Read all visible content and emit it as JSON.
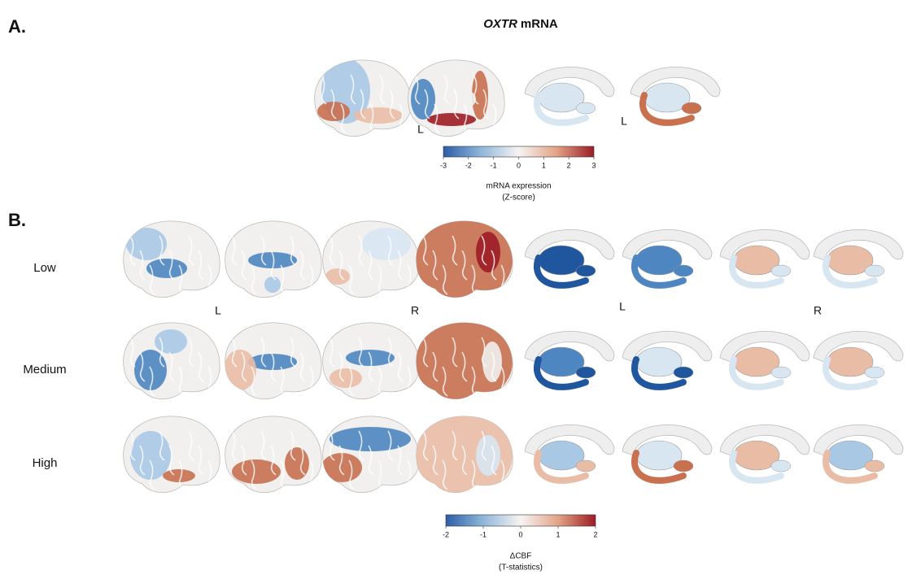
{
  "panel_a": {
    "label": "A.",
    "title_italic": "OXTR",
    "title_rest": "mRNA",
    "hemisphere_labels": [
      "L",
      "L"
    ],
    "colorbar": {
      "lim": [
        -3,
        3
      ],
      "ticks": [
        -3,
        -2,
        -1,
        0,
        1,
        2,
        3
      ],
      "label": [
        "mRNA expression",
        "(Z-score)"
      ]
    }
  },
  "panel_b": {
    "label": "B.",
    "rows": [
      "Low",
      "Medium",
      "High"
    ],
    "hemisphere_labels": [
      "L",
      "R",
      "L",
      "R"
    ],
    "colorbar": {
      "lim": [
        -2,
        2
      ],
      "ticks": [
        -2,
        -1,
        0,
        1,
        2
      ],
      "label": [
        "ΔCBF",
        "(T-statistics)"
      ]
    }
  }
}
